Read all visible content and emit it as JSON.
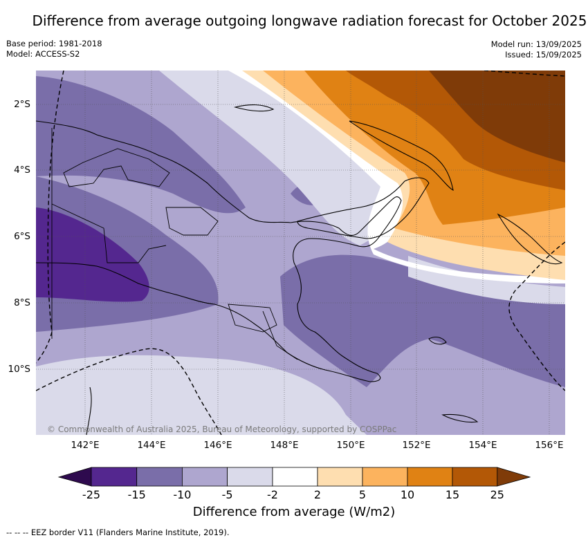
{
  "title": "Difference from average outgoing longwave radiation forecast for October 2025",
  "meta": {
    "base_period": "Base period: 1981-2018",
    "model": "Model: ACCESS-S2",
    "model_run": "Model run: 13/09/2025",
    "issued": "Issued: 15/09/2025"
  },
  "map": {
    "lat_labels": [
      "2°S",
      "4°S",
      "6°S",
      "8°S",
      "10°S"
    ],
    "lon_labels": [
      "142°E",
      "144°E",
      "146°E",
      "148°E",
      "150°E",
      "152°E",
      "154°E",
      "156°E"
    ],
    "copyright": "© Commonwealth of Australia 2025, Bureau of Meteorology, supported by COSPPac"
  },
  "colorbar": {
    "ticks": [
      "-25",
      "-15",
      "-10",
      "-5",
      "-2",
      "2",
      "5",
      "10",
      "15",
      "25"
    ],
    "colors": [
      "#2e0a4e",
      "#54278f",
      "#7a6ea9",
      "#aea6cf",
      "#dadaea",
      "#ffffff",
      "#fedeb0",
      "#fcb35e",
      "#e08214",
      "#b35806",
      "#7f3b08"
    ],
    "label": "Difference from average (W/m2)"
  },
  "footnote": "--  --  -- EEZ border V11 (Flanders Marine Institute, 2019)."
}
